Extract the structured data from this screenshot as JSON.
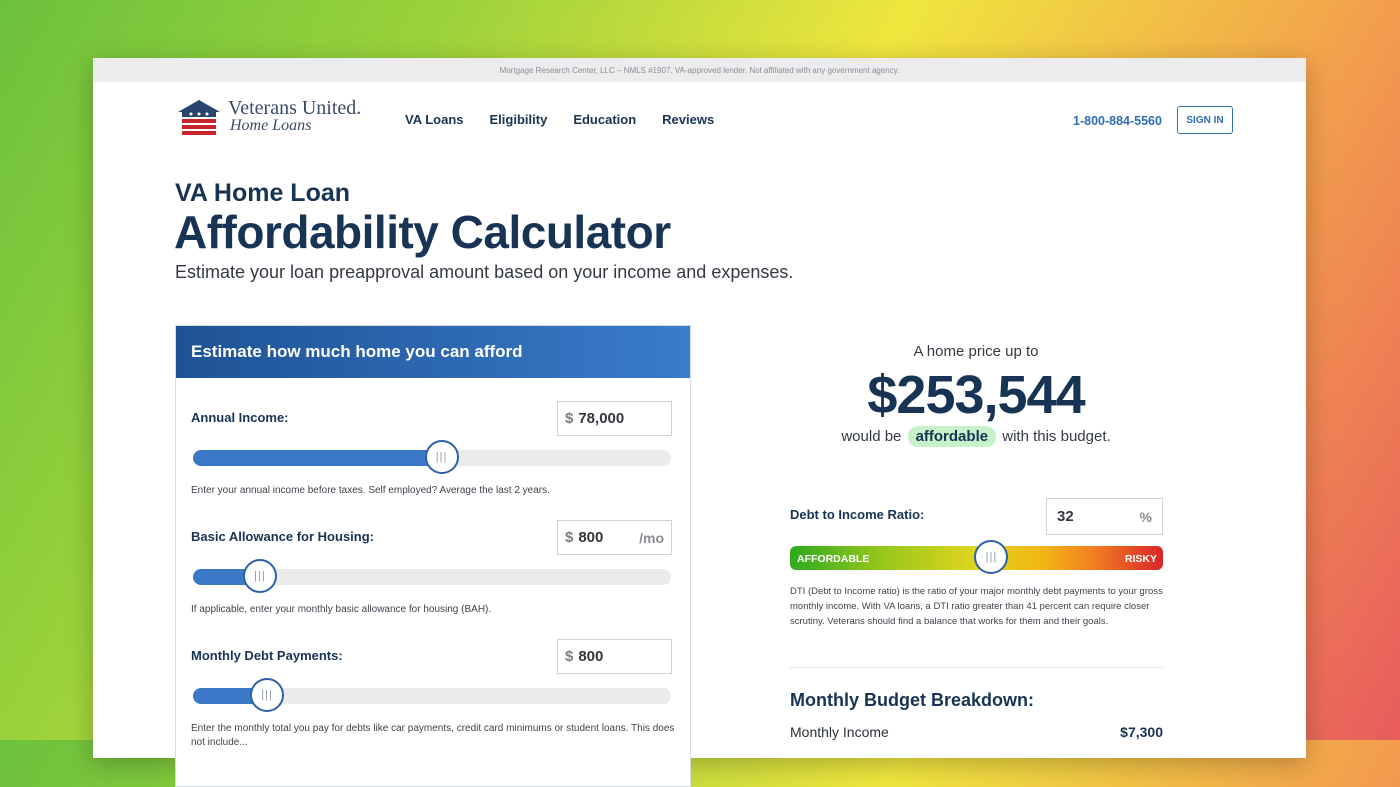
{
  "topbar": {
    "notice": "Mortgage Research Center, LLC – NMLS #1907. VA-approved lender. Not affiliated with any government agency."
  },
  "brand": {
    "line1": "Veterans United.",
    "line2": "Home Loans"
  },
  "nav": [
    {
      "label": "VA Loans"
    },
    {
      "label": "Eligibility"
    },
    {
      "label": "Education"
    },
    {
      "label": "Reviews"
    }
  ],
  "header": {
    "phone": "1-800-884-5560",
    "signin": "SIGN IN"
  },
  "page": {
    "title_pre": "VA Home Loan",
    "title_main": "Affordability Calculator",
    "subtitle": "Estimate your loan preapproval amount based on your income and expenses."
  },
  "card": {
    "heading": "Estimate how much home you can afford",
    "fields": [
      {
        "label": "Annual Income:",
        "currency": "$",
        "value": "78,000",
        "unit": "",
        "slider_level": 0.52,
        "help": "Enter your annual income before taxes. Self employed? Average the last 2 years."
      },
      {
        "label": "Basic Allowance for Housing:",
        "currency": "$",
        "value": "800",
        "unit": "/mo",
        "slider_level": 0.14,
        "help": "If applicable, enter your monthly basic allowance for housing (BAH)."
      },
      {
        "label": "Monthly Debt Payments:",
        "currency": "$",
        "value": "800",
        "unit": "",
        "slider_level": 0.155,
        "help": "Enter the monthly total you pay for debts like car payments, credit card minimums or student loans. This does not include..."
      }
    ],
    "thumb_glyph": "|||"
  },
  "result": {
    "pre": "A home price up to",
    "amount": "$253,544",
    "post_before": "would be",
    "pill": "affordable",
    "post_after": "with this budget."
  },
  "dti": {
    "label": "Debt to Income Ratio:",
    "value": "32",
    "unit": "%",
    "scale_left": "AFFORDABLE",
    "scale_right": "RISKY",
    "slider_level": 0.54,
    "help": "DTI (Debt to Income ratio) is the ratio of your major monthly debt payments to your gross monthly income. With VA loans, a DTI ratio greater than 41 percent can require closer scrutiny. Veterans should find a balance that works for them and their goals."
  },
  "budget": {
    "title": "Monthly Budget Breakdown:",
    "rows": [
      {
        "label": "Monthly Income",
        "value": "$7,300"
      }
    ]
  },
  "colors": {
    "navy": "#183455",
    "accent": "#2f6db5",
    "slider_fill": "#3b78c5",
    "pill_bg": "#c7f1c9"
  }
}
